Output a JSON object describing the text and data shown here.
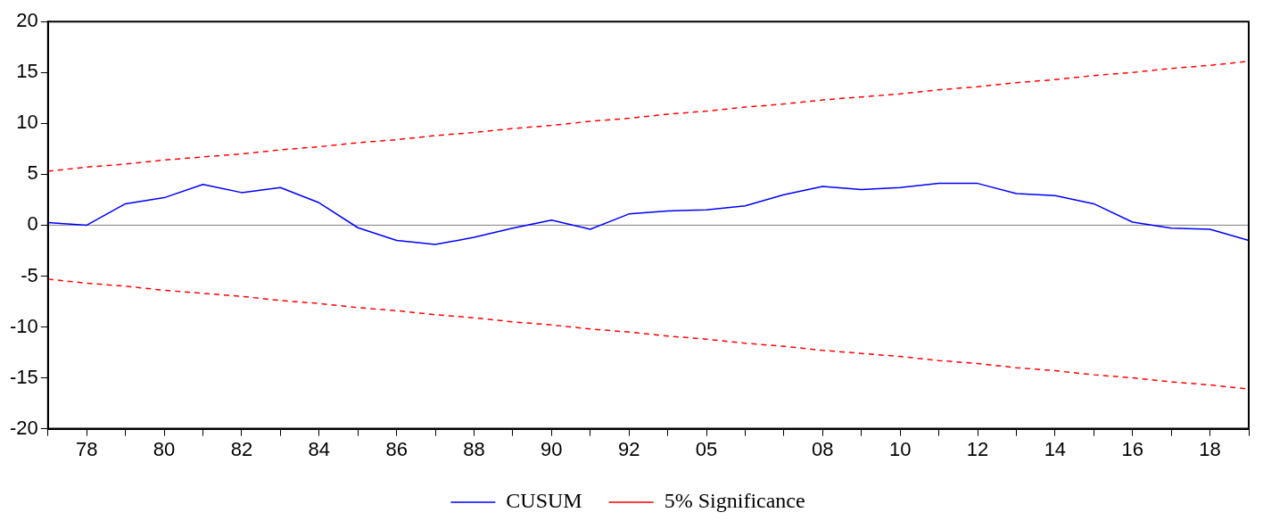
{
  "chart_data": {
    "type": "line",
    "categories": [
      null,
      "78",
      null,
      "80",
      null,
      "82",
      null,
      "84",
      null,
      "86",
      null,
      "88",
      null,
      "90",
      null,
      "92",
      null,
      "05",
      null,
      null,
      "08",
      null,
      "10",
      null,
      "12",
      null,
      "14",
      null,
      "16",
      null,
      "18",
      null
    ],
    "series": [
      {
        "name": "CUSUM",
        "color": "#0000ff",
        "line_style": "solid",
        "values": [
          0.25,
          0.0,
          2.1,
          2.7,
          4.0,
          3.2,
          3.7,
          2.2,
          -0.25,
          -1.5,
          -1.9,
          -1.2,
          -0.3,
          0.5,
          -0.4,
          1.1,
          1.4,
          1.5,
          1.9,
          3.0,
          3.8,
          3.5,
          3.7,
          4.1,
          4.1,
          3.1,
          2.9,
          2.1,
          0.3,
          -0.3,
          -0.4,
          -1.5
        ]
      },
      {
        "name": "5% Significance",
        "color": "#ff0000",
        "line_style": "dashed",
        "values": [
          5.3,
          5.7,
          6.0,
          6.4,
          6.7,
          7.0,
          7.4,
          7.7,
          8.1,
          8.4,
          8.8,
          9.1,
          9.5,
          9.8,
          10.2,
          10.5,
          10.9,
          11.2,
          11.6,
          11.9,
          12.3,
          12.6,
          12.9,
          13.3,
          13.6,
          14.0,
          14.3,
          14.7,
          15.0,
          15.4,
          15.7,
          16.1
        ]
      },
      {
        "color": "#ff0000",
        "line_style": "dashed",
        "values": [
          -5.3,
          -5.7,
          -6.0,
          -6.4,
          -6.7,
          -7.0,
          -7.4,
          -7.7,
          -8.1,
          -8.4,
          -8.8,
          -9.1,
          -9.5,
          -9.8,
          -10.2,
          -10.5,
          -10.9,
          -11.2,
          -11.6,
          -11.9,
          -12.3,
          -12.6,
          -12.9,
          -13.3,
          -13.6,
          -14.0,
          -14.3,
          -14.7,
          -15.0,
          -15.4,
          -15.7,
          -16.1
        ]
      }
    ],
    "ylim": [
      -20,
      20
    ],
    "yticks": [
      -20,
      -15,
      -10,
      -5,
      0,
      5,
      10,
      15,
      20
    ],
    "ref_lines": [
      {
        "axis": "y",
        "value": 0,
        "color": "#808080"
      }
    ],
    "grid": false,
    "legend": "bottom",
    "marker": "none"
  }
}
